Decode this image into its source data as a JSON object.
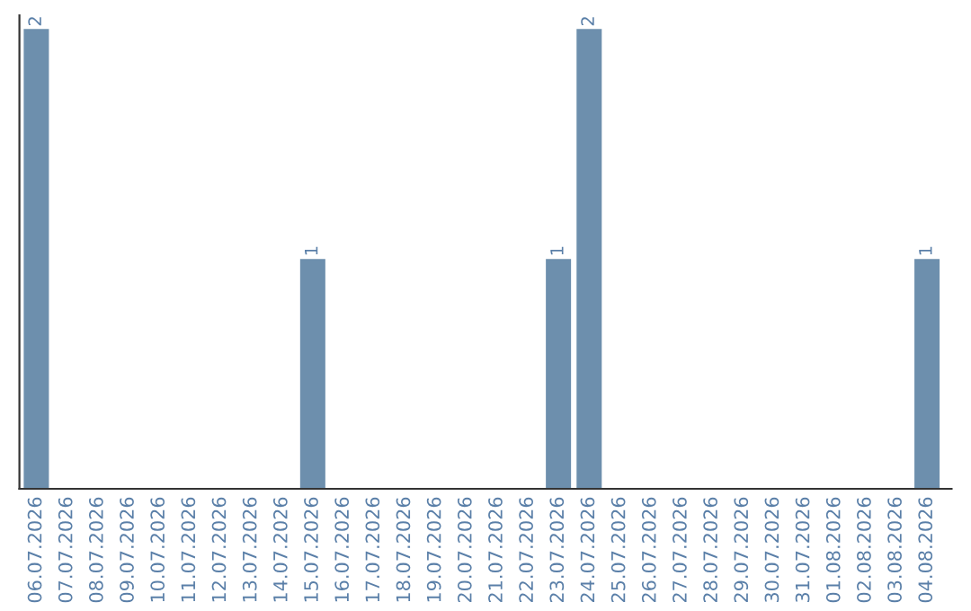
{
  "chart_data": {
    "type": "bar",
    "categories": [
      "06.07.2026",
      "07.07.2026",
      "08.07.2026",
      "09.07.2026",
      "10.07.2026",
      "11.07.2026",
      "12.07.2026",
      "13.07.2026",
      "14.07.2026",
      "15.07.2026",
      "16.07.2026",
      "17.07.2026",
      "18.07.2026",
      "19.07.2026",
      "20.07.2026",
      "21.07.2026",
      "22.07.2026",
      "23.07.2026",
      "24.07.2026",
      "25.07.2026",
      "26.07.2026",
      "27.07.2026",
      "28.07.2026",
      "29.07.2026",
      "30.07.2026",
      "31.07.2026",
      "01.08.2026",
      "02.08.2026",
      "03.08.2026",
      "04.08.2026"
    ],
    "values": [
      2,
      0,
      0,
      0,
      0,
      0,
      0,
      0,
      0,
      1,
      0,
      0,
      0,
      0,
      0,
      0,
      0,
      1,
      2,
      0,
      0,
      0,
      0,
      0,
      0,
      0,
      0,
      0,
      0,
      1
    ],
    "value_labels": [
      "2",
      null,
      null,
      null,
      null,
      null,
      null,
      null,
      null,
      "1",
      null,
      null,
      null,
      null,
      null,
      null,
      null,
      "1",
      "2",
      null,
      null,
      null,
      null,
      null,
      null,
      null,
      null,
      null,
      null,
      "1"
    ],
    "color": "#6d8fad",
    "tick_labels": "x",
    "grid": false,
    "legend": false
  }
}
